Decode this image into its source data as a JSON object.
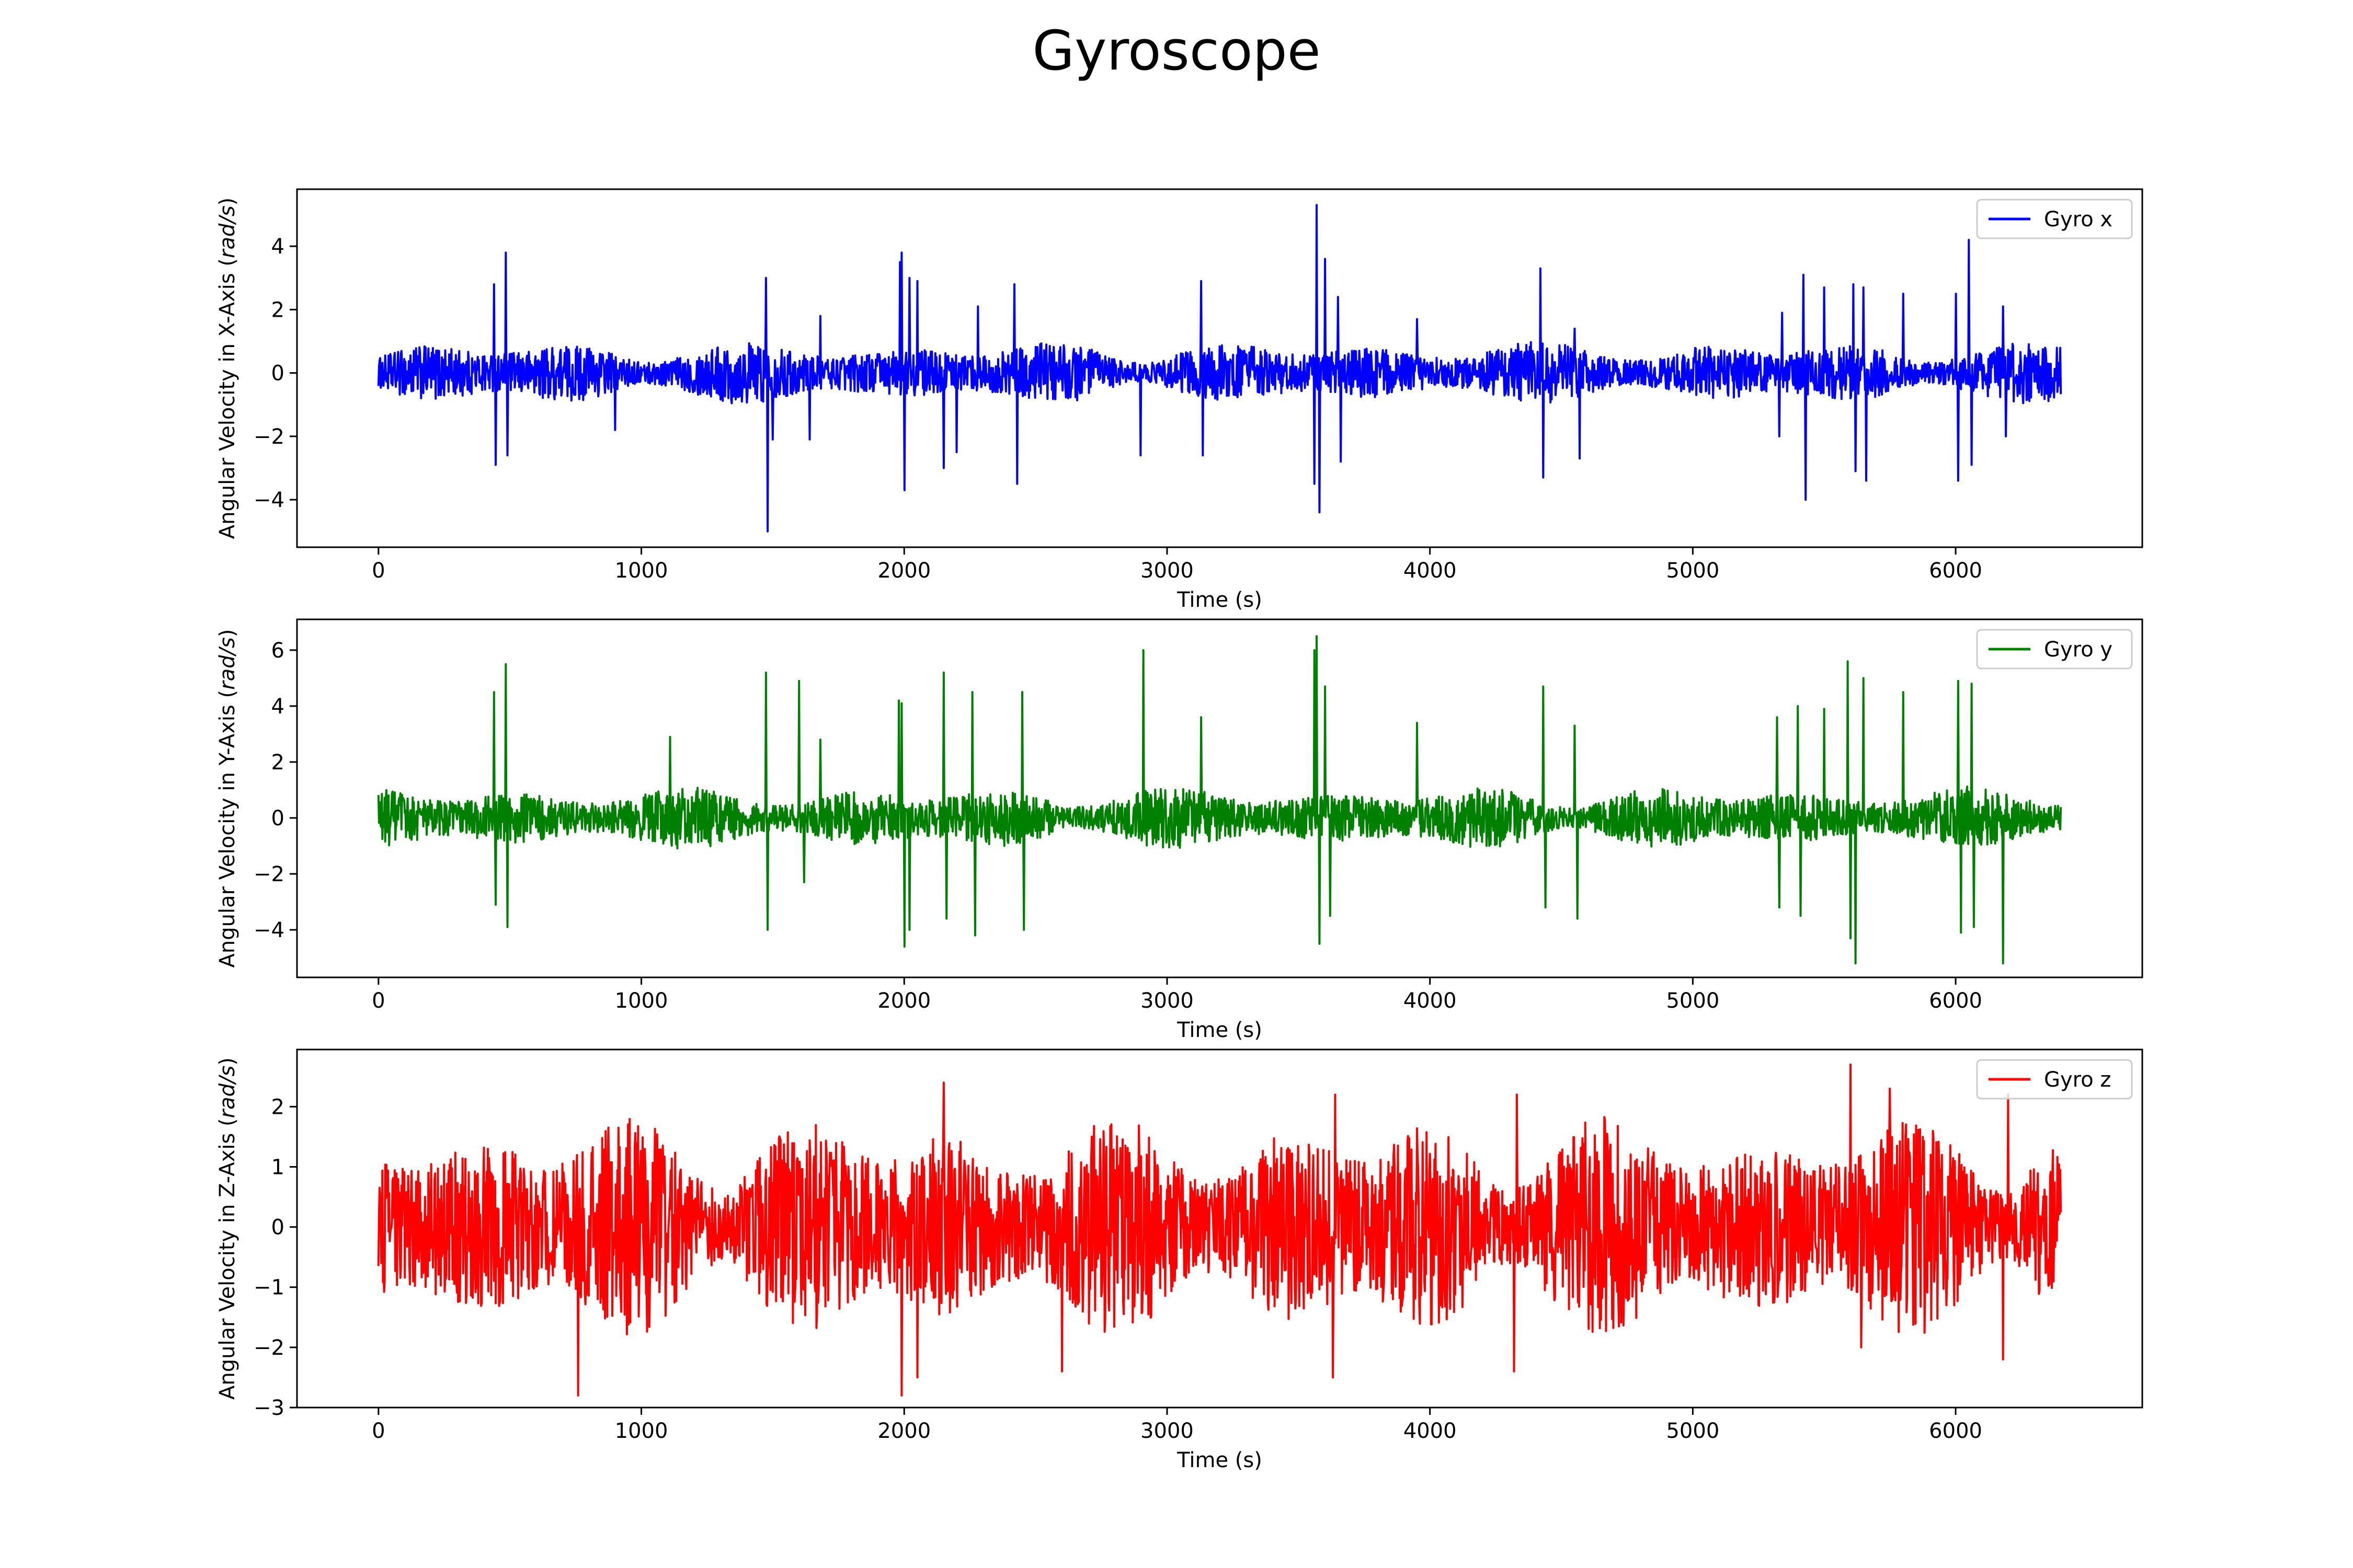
{
  "figure": {
    "title": "Gyroscope"
  },
  "chart_data": [
    {
      "type": "line",
      "title": "",
      "xlabel": "Time (s)",
      "ylabel_prefix": "Angular Velocity in X-Axis (",
      "ylabel_unit": "rad/s",
      "ylabel_suffix": ")",
      "xlim": [
        -310,
        6710
      ],
      "ylim": [
        -5.5,
        5.8
      ],
      "xticks": [
        0,
        1000,
        2000,
        3000,
        4000,
        5000,
        6000
      ],
      "xtick_labels": [
        "0",
        "1000",
        "2000",
        "3000",
        "4000",
        "5000",
        "6000"
      ],
      "yticks": [
        -4,
        -2,
        0,
        2,
        4
      ],
      "ytick_labels": [
        "−4",
        "−2",
        "0",
        "2",
        "4"
      ],
      "grid": false,
      "legend_position": "upper right",
      "series": [
        {
          "name": "Gyro x",
          "color": "#0000ff",
          "x_range": [
            0,
            6400
          ],
          "baseline_amplitude": 0.8,
          "spikes": [
            [
              440,
              2.8
            ],
            [
              445,
              -2.9
            ],
            [
              485,
              3.8
            ],
            [
              490,
              -2.6
            ],
            [
              900,
              -1.8
            ],
            [
              1475,
              3.0
            ],
            [
              1480,
              -5.0
            ],
            [
              1500,
              -2.1
            ],
            [
              1640,
              -2.1
            ],
            [
              1680,
              1.8
            ],
            [
              1985,
              3.5
            ],
            [
              1990,
              3.8
            ],
            [
              2000,
              -3.7
            ],
            [
              2020,
              3.0
            ],
            [
              2050,
              2.9
            ],
            [
              2150,
              -3.0
            ],
            [
              2200,
              -2.5
            ],
            [
              2280,
              2.1
            ],
            [
              2420,
              2.8
            ],
            [
              2430,
              -3.5
            ],
            [
              2900,
              -2.6
            ],
            [
              3130,
              2.9
            ],
            [
              3135,
              -2.6
            ],
            [
              3560,
              -3.5
            ],
            [
              3570,
              5.3
            ],
            [
              3580,
              -4.4
            ],
            [
              3600,
              3.6
            ],
            [
              3650,
              2.4
            ],
            [
              3660,
              -2.8
            ],
            [
              3950,
              1.7
            ],
            [
              4420,
              3.3
            ],
            [
              4430,
              -3.3
            ],
            [
              4550,
              1.4
            ],
            [
              4570,
              -2.7
            ],
            [
              5330,
              -2.0
            ],
            [
              5340,
              1.9
            ],
            [
              5420,
              3.1
            ],
            [
              5430,
              -4.0
            ],
            [
              5500,
              2.7
            ],
            [
              5610,
              2.8
            ],
            [
              5620,
              -3.1
            ],
            [
              5650,
              2.7
            ],
            [
              5660,
              -3.4
            ],
            [
              5800,
              2.5
            ],
            [
              6000,
              2.5
            ],
            [
              6010,
              -3.4
            ],
            [
              6050,
              4.2
            ],
            [
              6060,
              -2.9
            ],
            [
              6180,
              2.1
            ],
            [
              6190,
              -2.0
            ]
          ]
        }
      ]
    },
    {
      "type": "line",
      "title": "",
      "xlabel": "Time (s)",
      "ylabel_prefix": "Angular Velocity in Y-Axis (",
      "ylabel_unit": "rad/s",
      "ylabel_suffix": ")",
      "xlim": [
        -310,
        6710
      ],
      "ylim": [
        -5.7,
        7.1
      ],
      "xticks": [
        0,
        1000,
        2000,
        3000,
        4000,
        5000,
        6000
      ],
      "xtick_labels": [
        "0",
        "1000",
        "2000",
        "3000",
        "4000",
        "5000",
        "6000"
      ],
      "yticks": [
        -4,
        -2,
        0,
        2,
        4,
        6
      ],
      "ytick_labels": [
        "−4",
        "−2",
        "0",
        "2",
        "4",
        "6"
      ],
      "grid": false,
      "legend_position": "upper right",
      "series": [
        {
          "name": "Gyro y",
          "color": "#008000",
          "x_range": [
            0,
            6400
          ],
          "baseline_amplitude": 0.9,
          "spikes": [
            [
              440,
              4.5
            ],
            [
              445,
              -3.1
            ],
            [
              485,
              5.5
            ],
            [
              490,
              -3.9
            ],
            [
              1110,
              2.9
            ],
            [
              1475,
              5.2
            ],
            [
              1480,
              -4.0
            ],
            [
              1600,
              4.9
            ],
            [
              1620,
              -2.3
            ],
            [
              1680,
              2.8
            ],
            [
              1980,
              4.2
            ],
            [
              1990,
              4.1
            ],
            [
              2000,
              -4.6
            ],
            [
              2020,
              -4.0
            ],
            [
              2150,
              5.2
            ],
            [
              2160,
              -3.6
            ],
            [
              2260,
              4.5
            ],
            [
              2270,
              -4.2
            ],
            [
              2450,
              4.5
            ],
            [
              2455,
              -4.0
            ],
            [
              2910,
              6.0
            ],
            [
              3130,
              3.6
            ],
            [
              3560,
              6.0
            ],
            [
              3570,
              6.5
            ],
            [
              3580,
              -4.5
            ],
            [
              3600,
              4.7
            ],
            [
              3620,
              -3.5
            ],
            [
              3950,
              3.4
            ],
            [
              4430,
              4.7
            ],
            [
              4440,
              -3.2
            ],
            [
              4550,
              3.3
            ],
            [
              4560,
              -3.6
            ],
            [
              5320,
              3.6
            ],
            [
              5330,
              -3.2
            ],
            [
              5400,
              4.0
            ],
            [
              5410,
              -3.5
            ],
            [
              5500,
              3.9
            ],
            [
              5590,
              5.6
            ],
            [
              5600,
              -4.3
            ],
            [
              5620,
              -5.2
            ],
            [
              5650,
              5.0
            ],
            [
              5800,
              4.5
            ],
            [
              6010,
              4.9
            ],
            [
              6020,
              -4.1
            ],
            [
              6060,
              4.8
            ],
            [
              6070,
              -3.9
            ],
            [
              6180,
              -5.2
            ]
          ]
        }
      ]
    },
    {
      "type": "line",
      "title": "",
      "xlabel": "Time (s)",
      "ylabel_prefix": "Angular Velocity in Z-Axis (",
      "ylabel_unit": "rad/s",
      "ylabel_suffix": ")",
      "xlim": [
        -310,
        6710
      ],
      "ylim": [
        -3.0,
        2.95
      ],
      "xticks": [
        0,
        1000,
        2000,
        3000,
        4000,
        5000,
        6000
      ],
      "xtick_labels": [
        "0",
        "1000",
        "2000",
        "3000",
        "4000",
        "5000",
        "6000"
      ],
      "yticks": [
        -3,
        -2,
        -1,
        0,
        1,
        2
      ],
      "ytick_labels": [
        "−3",
        "−2",
        "−1",
        "0",
        "1",
        "2"
      ],
      "grid": false,
      "legend_position": "upper right",
      "series": [
        {
          "name": "Gyro z",
          "color": "#ff0000",
          "x_range": [
            0,
            6400
          ],
          "baseline_amplitude": 1.5,
          "spikes": [
            [
              760,
              -2.8
            ],
            [
              1990,
              -2.8
            ],
            [
              2150,
              2.4
            ],
            [
              2050,
              -2.5
            ],
            [
              2600,
              -2.4
            ],
            [
              3630,
              -2.5
            ],
            [
              3640,
              2.2
            ],
            [
              4320,
              -2.4
            ],
            [
              4330,
              2.2
            ],
            [
              5600,
              2.7
            ],
            [
              5640,
              -2.0
            ],
            [
              5750,
              2.3
            ],
            [
              6180,
              -2.2
            ],
            [
              6200,
              2.2
            ]
          ]
        }
      ]
    }
  ]
}
